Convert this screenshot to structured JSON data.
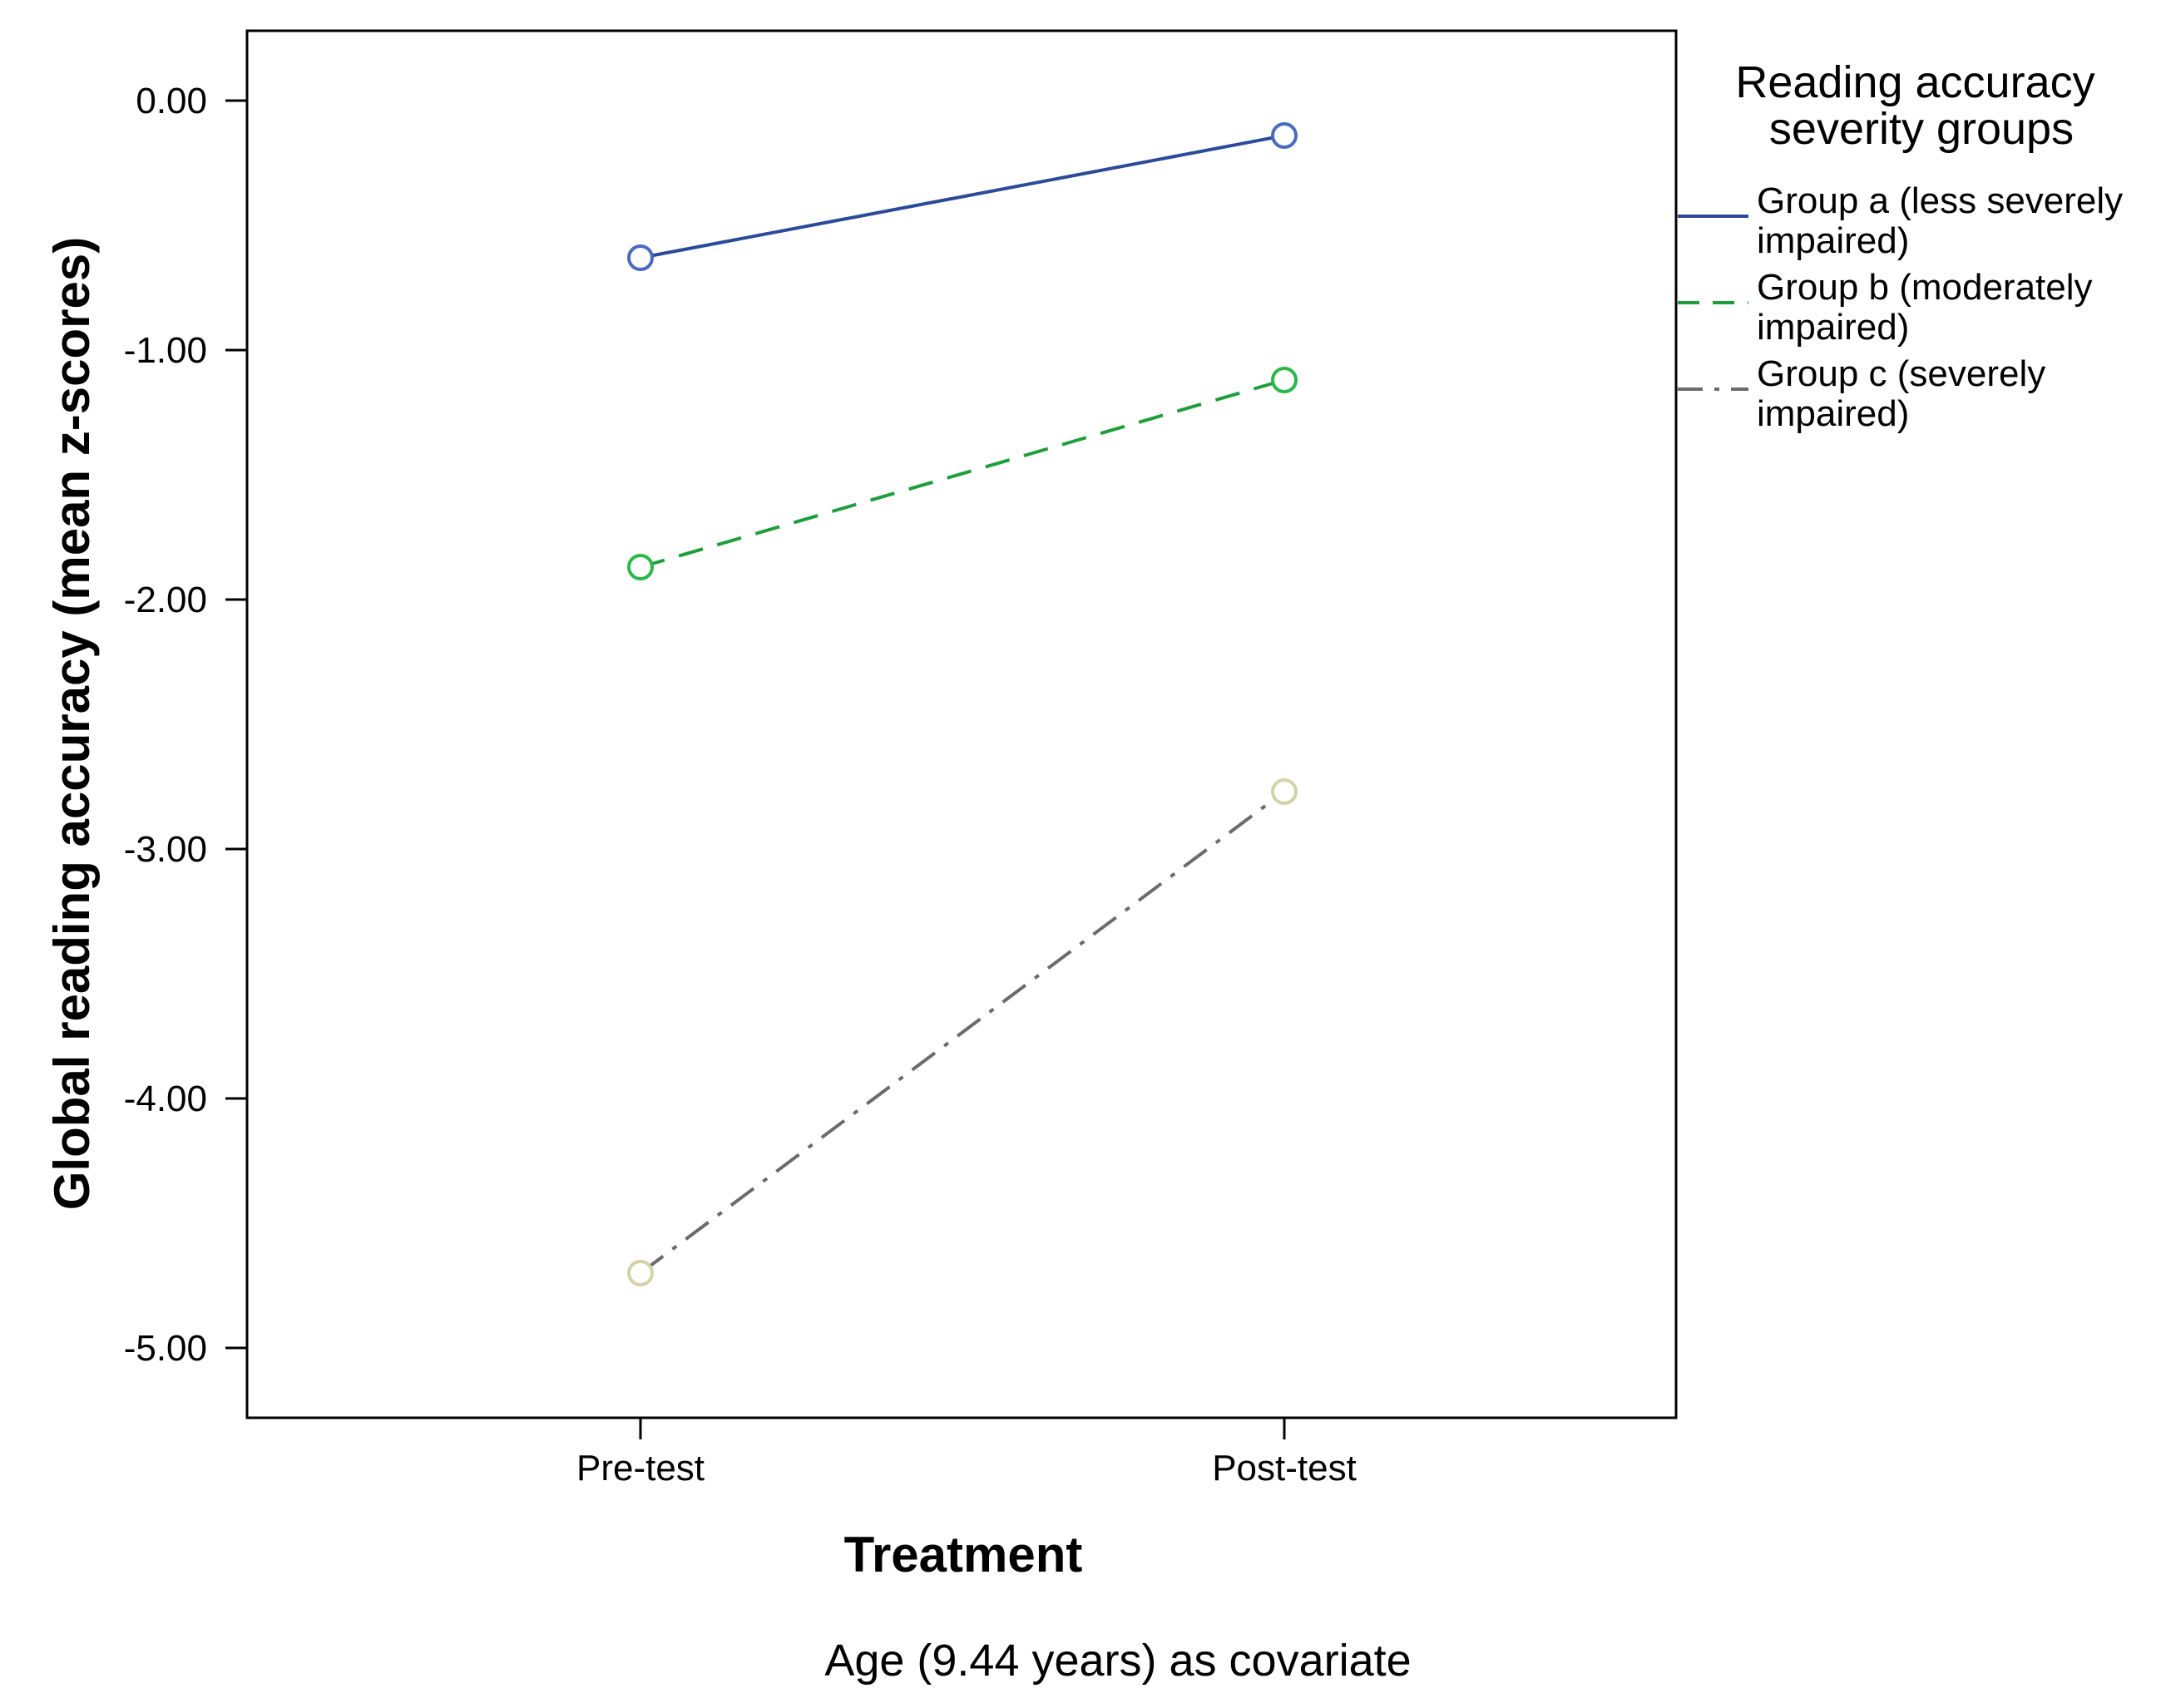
{
  "chart_data": {
    "type": "line",
    "x_categories": [
      "Pre-test",
      "Post-test"
    ],
    "xlabel": "Treatment",
    "ylabel": "Global reading accuracy (mean z-scores)",
    "yticks": [
      "0.00",
      "-1.00",
      "-2.00",
      "-3.00",
      "-4.00",
      "-5.00"
    ],
    "ylim": [
      -5.28,
      0.28
    ],
    "grid": false,
    "legend": {
      "title_lines": [
        "Reading accuracy",
        "severity groups"
      ],
      "placement": "right"
    },
    "footnote": "Age (9.44 years) as covariate",
    "series": [
      {
        "name_lines": [
          "Group a (less severely",
          "impaired)"
        ],
        "values": [
          -0.63,
          -0.14
        ],
        "line_color": "#2b4a9a",
        "marker_color": "#4a6bbf",
        "dash": "solid"
      },
      {
        "name_lines": [
          "Group b (moderately",
          "impaired)"
        ],
        "values": [
          -1.87,
          -1.12
        ],
        "line_color": "#1e9e3a",
        "marker_color": "#2ab84a",
        "dash": "dashed"
      },
      {
        "name_lines": [
          "Group c (severely",
          "impaired)"
        ],
        "values": [
          -4.7,
          -2.77
        ],
        "line_color": "#6b6b6b",
        "marker_color": "#d4d2a8",
        "dash": "dashdot"
      }
    ]
  }
}
